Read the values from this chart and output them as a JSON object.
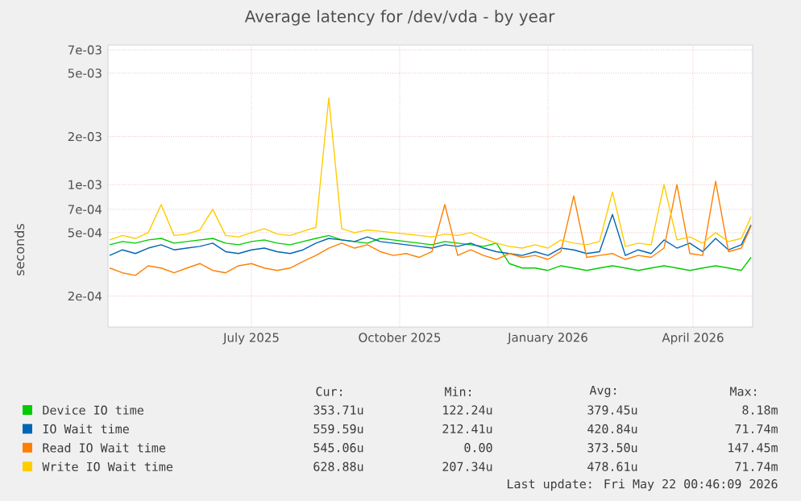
{
  "chart_data": {
    "type": "line",
    "title": "Average latency for /dev/vda - by year",
    "ylabel": "seconds",
    "x": [
      "2025-04-18",
      "2025-04-26",
      "2025-05-04",
      "2025-05-12",
      "2025-05-20",
      "2025-05-28",
      "2025-06-05",
      "2025-06-13",
      "2025-06-21",
      "2025-06-29",
      "2025-07-07",
      "2025-07-15",
      "2025-07-23",
      "2025-07-31",
      "2025-08-08",
      "2025-08-16",
      "2025-08-24",
      "2025-09-01",
      "2025-09-09",
      "2025-09-17",
      "2025-09-25",
      "2025-10-03",
      "2025-10-11",
      "2025-10-19",
      "2025-10-27",
      "2025-11-04",
      "2025-11-12",
      "2025-11-20",
      "2025-11-28",
      "2025-12-06",
      "2025-12-14",
      "2025-12-22",
      "2025-12-30",
      "2026-01-07",
      "2026-01-15",
      "2026-01-23",
      "2026-01-31",
      "2026-02-08",
      "2026-02-16",
      "2026-02-24",
      "2026-03-04",
      "2026-03-12",
      "2026-03-20",
      "2026-03-28",
      "2026-04-05",
      "2026-04-13",
      "2026-04-21",
      "2026-04-29",
      "2026-05-07",
      "2026-05-15",
      "2026-05-21"
    ],
    "series": [
      {
        "name": "Device IO time",
        "color": "#00cc00",
        "values": [
          0.00042,
          0.00044,
          0.00043,
          0.00045,
          0.00046,
          0.00043,
          0.00044,
          0.00045,
          0.00046,
          0.00043,
          0.00042,
          0.00044,
          0.00045,
          0.00043,
          0.00042,
          0.00044,
          0.00046,
          0.00048,
          0.00045,
          0.00044,
          0.00043,
          0.00046,
          0.00045,
          0.00044,
          0.00043,
          0.00042,
          0.00044,
          0.00043,
          0.00042,
          0.00041,
          0.00043,
          0.00032,
          0.0003,
          0.0003,
          0.00029,
          0.00031,
          0.0003,
          0.00029,
          0.0003,
          0.00031,
          0.0003,
          0.00029,
          0.0003,
          0.00031,
          0.0003,
          0.00029,
          0.0003,
          0.00031,
          0.0003,
          0.00029,
          0.00035
        ]
      },
      {
        "name": "IO Wait time",
        "color": "#0066b3",
        "values": [
          0.00036,
          0.00039,
          0.00037,
          0.0004,
          0.00042,
          0.00039,
          0.0004,
          0.00041,
          0.00043,
          0.00038,
          0.00037,
          0.00039,
          0.0004,
          0.00038,
          0.00037,
          0.00039,
          0.00043,
          0.00046,
          0.00045,
          0.00044,
          0.00047,
          0.00044,
          0.00043,
          0.00042,
          0.00041,
          0.0004,
          0.00042,
          0.00041,
          0.00043,
          0.0004,
          0.00038,
          0.00037,
          0.00036,
          0.00038,
          0.00036,
          0.0004,
          0.00039,
          0.00037,
          0.00038,
          0.00065,
          0.00036,
          0.00039,
          0.00037,
          0.00045,
          0.0004,
          0.00043,
          0.00038,
          0.00046,
          0.00039,
          0.00042,
          0.00056
        ]
      },
      {
        "name": "Read IO Wait time",
        "color": "#ff8000",
        "values": [
          0.0003,
          0.00028,
          0.00027,
          0.00031,
          0.0003,
          0.00028,
          0.0003,
          0.00032,
          0.00029,
          0.00028,
          0.00031,
          0.00032,
          0.0003,
          0.00029,
          0.0003,
          0.00033,
          0.00036,
          0.0004,
          0.00043,
          0.0004,
          0.00042,
          0.00038,
          0.00036,
          0.00037,
          0.00035,
          0.00038,
          0.00075,
          0.00036,
          0.00039,
          0.00036,
          0.00034,
          0.00037,
          0.00035,
          0.00036,
          0.00034,
          0.00038,
          0.00085,
          0.00035,
          0.00036,
          0.00037,
          0.00034,
          0.00036,
          0.00035,
          0.0004,
          0.001,
          0.00037,
          0.00036,
          0.00105,
          0.00038,
          0.0004,
          0.00055
        ]
      },
      {
        "name": "Write IO Wait time",
        "color": "#ffcc00",
        "values": [
          0.00045,
          0.00048,
          0.00046,
          0.0005,
          0.00075,
          0.00048,
          0.00049,
          0.00052,
          0.0007,
          0.00048,
          0.00047,
          0.0005,
          0.00053,
          0.00049,
          0.00048,
          0.00051,
          0.00054,
          0.0035,
          0.00053,
          0.0005,
          0.00052,
          0.00051,
          0.0005,
          0.00049,
          0.00048,
          0.00047,
          0.00049,
          0.00048,
          0.0005,
          0.00046,
          0.00043,
          0.00041,
          0.0004,
          0.00042,
          0.0004,
          0.00045,
          0.00043,
          0.00042,
          0.00044,
          0.0009,
          0.00041,
          0.00043,
          0.00042,
          0.001,
          0.00045,
          0.00047,
          0.00043,
          0.0005,
          0.00044,
          0.00046,
          0.00063
        ]
      }
    ],
    "log": "y",
    "grid": true,
    "legend": "bottom",
    "xlim": [
      "2025-04-17",
      "2026-05-22"
    ],
    "xticks": [
      {
        "value": "2025-07-15",
        "label": "July 2025"
      },
      {
        "value": "2025-10-15",
        "label": "October 2025"
      },
      {
        "value": "2026-01-15",
        "label": "January 2026"
      },
      {
        "value": "2026-04-15",
        "label": "April 2026"
      }
    ],
    "ylim": [
      0.000128,
      0.0075
    ],
    "yticks": [
      {
        "value": 0.0002,
        "label": "2e-04"
      },
      {
        "value": 0.0005,
        "label": "5e-04"
      },
      {
        "value": 0.0007,
        "label": "7e-04"
      },
      {
        "value": 0.001,
        "label": "1e-03"
      },
      {
        "value": 0.002,
        "label": "2e-03"
      },
      {
        "value": 0.005,
        "label": "5e-03"
      },
      {
        "value": 0.007,
        "label": "7e-03"
      }
    ],
    "annotations": [
      "Cur:",
      "Min:",
      "Avg:",
      "Max:",
      "353.71u",
      "122.24u",
      "379.45u",
      "8.18m",
      "559.59u",
      "212.41u",
      "420.84u",
      "71.74m",
      "545.06u",
      "0.00",
      "373.50u",
      "147.45m",
      "628.88u",
      "207.34u",
      "478.61u",
      "71.74m",
      "Last update: Fri May 22 00:46:09 2026"
    ]
  }
}
